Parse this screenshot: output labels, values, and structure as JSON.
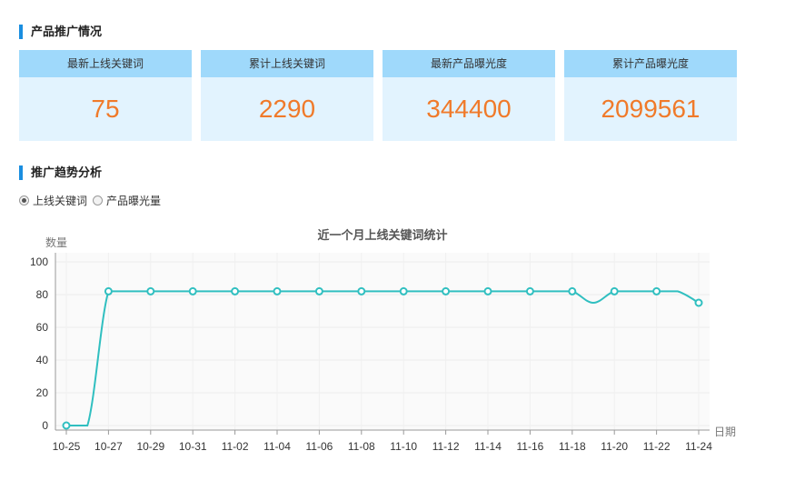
{
  "section_promo": {
    "title": "产品推广情况"
  },
  "stats": [
    {
      "label": "最新上线关键词",
      "value": "75"
    },
    {
      "label": "累计上线关键词",
      "value": "2290"
    },
    {
      "label": "最新产品曝光度",
      "value": "344400"
    },
    {
      "label": "累计产品曝光度",
      "value": "2099561"
    }
  ],
  "section_trend": {
    "title": "推广趋势分析"
  },
  "radios": [
    {
      "label": "上线关键词",
      "checked": true
    },
    {
      "label": "产品曝光量",
      "checked": false
    }
  ],
  "chart_data": {
    "type": "line",
    "title": "近一个月上线关键词统计",
    "ylabel": "数量",
    "xlabel": "日期",
    "ylim": [
      0,
      100
    ],
    "yticks": [
      0,
      20,
      40,
      60,
      80,
      100
    ],
    "xticks": [
      "10-25",
      "10-27",
      "10-29",
      "10-31",
      "11-02",
      "11-04",
      "11-06",
      "11-08",
      "11-10",
      "11-12",
      "11-14",
      "11-16",
      "11-18",
      "11-20",
      "11-22",
      "11-24"
    ],
    "x": [
      "10-25",
      "10-26",
      "10-27",
      "10-28",
      "10-29",
      "10-30",
      "10-31",
      "11-01",
      "11-02",
      "11-03",
      "11-04",
      "11-05",
      "11-06",
      "11-07",
      "11-08",
      "11-09",
      "11-10",
      "11-11",
      "11-12",
      "11-13",
      "11-14",
      "11-15",
      "11-16",
      "11-17",
      "11-18",
      "11-19",
      "11-20",
      "11-21",
      "11-22",
      "11-23",
      "11-24"
    ],
    "series": [
      {
        "values": [
          0,
          0,
          82,
          82,
          82,
          82,
          82,
          82,
          82,
          82,
          82,
          82,
          82,
          82,
          82,
          82,
          82,
          82,
          82,
          82,
          82,
          82,
          82,
          82,
          82,
          75,
          82,
          82,
          82,
          82,
          75
        ]
      }
    ],
    "marker_every": 2,
    "grid": true,
    "color": "#30bfc0"
  }
}
